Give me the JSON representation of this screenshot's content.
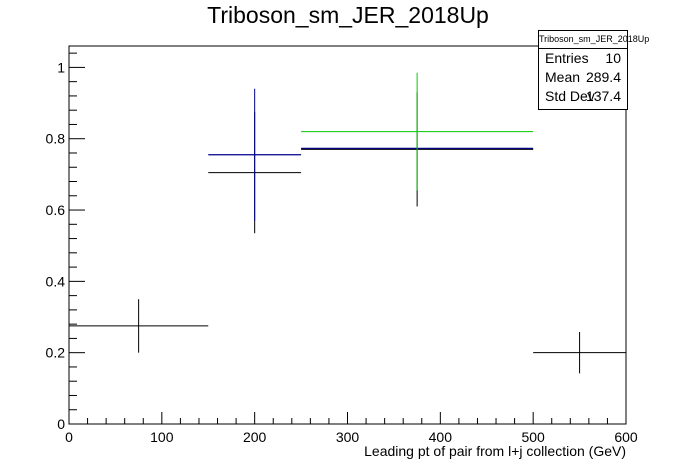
{
  "chart_data": {
    "type": "histogram",
    "title": "Triboson_sm_JER_2018Up",
    "xlabel": "Leading pt of pair from l+j collection (GeV)",
    "ylabel": "",
    "xlim": [
      0,
      600
    ],
    "ylim": [
      0,
      1.06
    ],
    "x_ticks": [
      "0",
      "100",
      "200",
      "300",
      "400",
      "500",
      "600"
    ],
    "y_ticks": [
      "0",
      "0.2",
      "0.4",
      "0.6",
      "0.8",
      "1"
    ],
    "x_tick_values": [
      0,
      100,
      200,
      300,
      400,
      500,
      600
    ],
    "y_tick_values": [
      0,
      0.2,
      0.4,
      0.6,
      0.8,
      1.0
    ],
    "grid": false,
    "series": [
      {
        "color": "#000000",
        "points": [
          {
            "xlo": 0,
            "xhi": 150,
            "y": 0.275,
            "err": 0.075
          },
          {
            "xlo": 150,
            "xhi": 250,
            "y": 0.705,
            "err": 0.17
          },
          {
            "xlo": 250,
            "xhi": 500,
            "y": 0.77,
            "err": 0.16
          },
          {
            "xlo": 500,
            "xhi": 600,
            "y": 0.2,
            "err": 0.058
          }
        ]
      },
      {
        "color": "#00008b",
        "points": [
          {
            "xlo": 150,
            "xhi": 250,
            "y": 0.755,
            "err": 0.185
          },
          {
            "xlo": 250,
            "xhi": 500,
            "y": 0.773,
            "err": 0
          }
        ]
      },
      {
        "color": "#00cc00",
        "points": [
          {
            "xlo": 250,
            "xhi": 500,
            "y": 0.82,
            "err": 0.165
          }
        ]
      }
    ],
    "stats_box": {
      "title": "Triboson_sm_JER_2018Up",
      "rows": [
        {
          "label": "Entries",
          "value": "10"
        },
        {
          "label": "Mean",
          "value": "289.4"
        },
        {
          "label": "Std Dev",
          "value": "137.4"
        }
      ]
    }
  }
}
